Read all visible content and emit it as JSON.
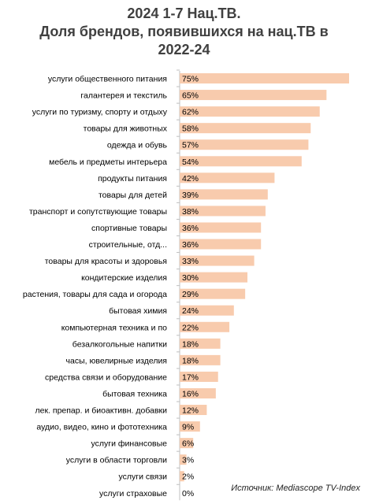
{
  "chart_data": {
    "type": "bar",
    "orientation": "horizontal",
    "title_lines": [
      "2024 1-7 Нац.ТВ.",
      "Доля брендов, появившихся на нац.ТВ в",
      "2022-24"
    ],
    "categories": [
      "услуги общественного питания",
      "галантерея и текстиль",
      "услуги по туризму, спорту и отдыху",
      "товары для животных",
      "одежда и обувь",
      "мебель и предметы интерьера",
      "продукты питания",
      "товары для детей",
      "транспорт и сопутствующие товары",
      "спортивные товары",
      "строительные, отд...",
      "товары для красоты и здоровья",
      "кондитерские изделия",
      "растения, товары для сада и огорода",
      "бытовая химия",
      "компьютерная техника и по",
      "безалкогольные напитки",
      "часы, ювелирные изделия",
      "средства связи и оборудование",
      "бытовая техника",
      "лек. препар. и биоактивн. добавки",
      "аудио, видео, кино и фототехника",
      "услуги финансовые",
      "услуги в области торговли",
      "услуги связи",
      "услуги страховые"
    ],
    "values": [
      75,
      65,
      62,
      58,
      57,
      54,
      42,
      39,
      38,
      36,
      36,
      33,
      30,
      29,
      24,
      22,
      18,
      18,
      17,
      16,
      12,
      9,
      6,
      3,
      2,
      0
    ],
    "value_labels": [
      "75%",
      "65%",
      "62%",
      "58%",
      "57%",
      "54%",
      "42%",
      "39%",
      "38%",
      "36%",
      "36%",
      "33%",
      "30%",
      "29%",
      "24%",
      "22%",
      "18%",
      "18%",
      "17%",
      "16%",
      "12%",
      "9%",
      "6%",
      "3%",
      "2%",
      "0%"
    ],
    "xlim": [
      0,
      75
    ],
    "bar_color": "#f8cbad",
    "axis_color": "#bfbfbf",
    "grid": false,
    "legend": "none"
  },
  "source": "Источник: Mediascope TV-Index"
}
